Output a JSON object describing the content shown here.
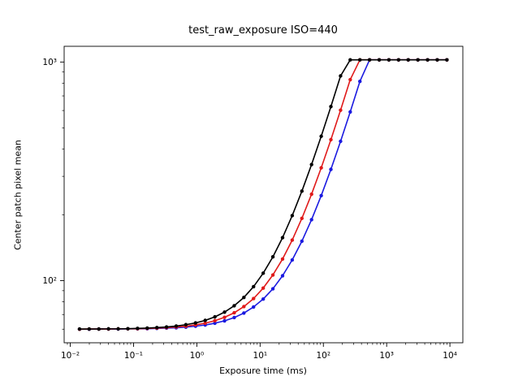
{
  "chart_data": {
    "type": "line",
    "title": "test_raw_exposure ISO=440",
    "xlabel": "Exposure time (ms)",
    "ylabel": "Center patch pixel mean",
    "xscale": "log",
    "yscale": "log",
    "xlim": [
      0.008,
      16000
    ],
    "ylim": [
      52,
      1180
    ],
    "xticks": [
      0.01,
      0.1,
      1,
      10,
      100,
      1000,
      10000
    ],
    "xtick_labels": [
      "10⁻²",
      "10⁻¹",
      "10⁰",
      "10¹",
      "10²",
      "10³",
      "10⁴"
    ],
    "yticks": [
      100,
      1000
    ],
    "ytick_labels": [
      "10²",
      "10³"
    ],
    "grid": false,
    "legend_position": "none",
    "marker": "dot",
    "x": [
      0.014,
      0.0199,
      0.0283,
      0.0402,
      0.0572,
      0.0813,
      0.1156,
      0.1643,
      0.2336,
      0.3321,
      0.4721,
      0.6712,
      0.9542,
      1.3565,
      1.9285,
      2.7417,
      3.8978,
      5.5414,
      7.878,
      11.2,
      15.923,
      22.636,
      32.182,
      45.752,
      65.045,
      92.474,
      131.47,
      186.91,
      265.72,
      377.75,
      537.06,
      763.54,
      1085.5,
      1543.3,
      2194.1,
      3119.4,
      4434.8,
      6305.0,
      8963.8
    ],
    "series": [
      {
        "name": "blue",
        "color": "#1a1ae0",
        "values": [
          60.0,
          60.0,
          60.1,
          60.1,
          60.1,
          60.2,
          60.2,
          60.3,
          60.5,
          60.7,
          60.9,
          61.3,
          61.9,
          62.7,
          63.9,
          65.5,
          67.8,
          71.1,
          75.8,
          82.4,
          91.8,
          105.3,
          124.4,
          151.5,
          190.1,
          244.9,
          322.9,
          433.8,
          591.4,
          815.5,
          1023,
          1023,
          1023,
          1023,
          1023,
          1023,
          1023,
          1023,
          1023
        ]
      },
      {
        "name": "red",
        "color": "#e01a1a",
        "values": [
          60.0,
          60.1,
          60.1,
          60.1,
          60.2,
          60.2,
          60.3,
          60.5,
          60.7,
          61.0,
          61.4,
          61.9,
          62.8,
          63.9,
          65.6,
          68.0,
          71.3,
          76.1,
          82.8,
          92.5,
          106.2,
          125.6,
          153.3,
          192.7,
          248.6,
          328.2,
          441.3,
          602.0,
          830.6,
          1023,
          1023,
          1023,
          1023,
          1023,
          1023,
          1023,
          1023,
          1023,
          1023
        ]
      },
      {
        "name": "black",
        "color": "#000000",
        "values": [
          60.1,
          60.1,
          60.1,
          60.2,
          60.2,
          60.3,
          60.5,
          60.7,
          61.0,
          61.4,
          62.0,
          62.9,
          64.1,
          65.8,
          68.3,
          71.8,
          76.8,
          83.8,
          93.9,
          108.2,
          128.5,
          157.3,
          198.4,
          256.7,
          339.7,
          457.6,
          625.3,
          863.7,
          1023,
          1023,
          1023,
          1023,
          1023,
          1023,
          1023,
          1023,
          1023,
          1023,
          1023
        ]
      }
    ]
  }
}
